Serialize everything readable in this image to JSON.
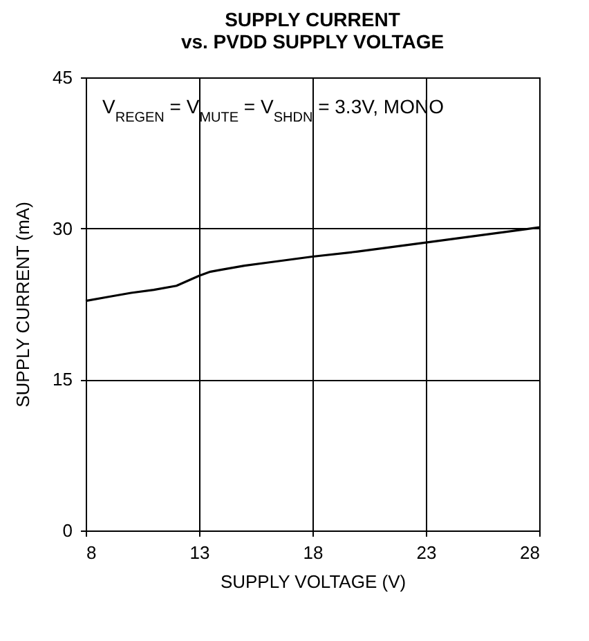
{
  "chart_data": {
    "type": "line",
    "title": "SUPPLY CURRENT",
    "subtitle": "vs. PVDD SUPPLY VOLTAGE",
    "xlabel": "SUPPLY VOLTAGE (V)",
    "ylabel": "SUPPLY CURRENT (mA)",
    "annotations": [
      "V$_{REGEN}$ = V$_{MUTE}$ = V$_{SHDN}$ = 3.3V, MONO"
    ],
    "x": [
      8,
      9,
      10,
      11,
      12,
      12.5,
      13,
      13.5,
      14,
      15,
      16,
      18,
      20,
      23,
      25,
      28
    ],
    "series": [
      {
        "color": "#000000",
        "values": [
          22.8,
          23.2,
          23.6,
          23.9,
          24.3,
          24.8,
          25.3,
          25.7,
          25.9,
          26.3,
          26.6,
          27.2,
          27.7,
          28.6,
          29.2,
          30.1
        ]
      }
    ],
    "xlim": [
      8,
      28
    ],
    "xticks": [
      8,
      13,
      18,
      23,
      28
    ],
    "ylim": [
      0,
      45
    ],
    "yticks": [
      0,
      15,
      30,
      45
    ],
    "grid": true,
    "line_style": "solid",
    "marker": "none"
  }
}
